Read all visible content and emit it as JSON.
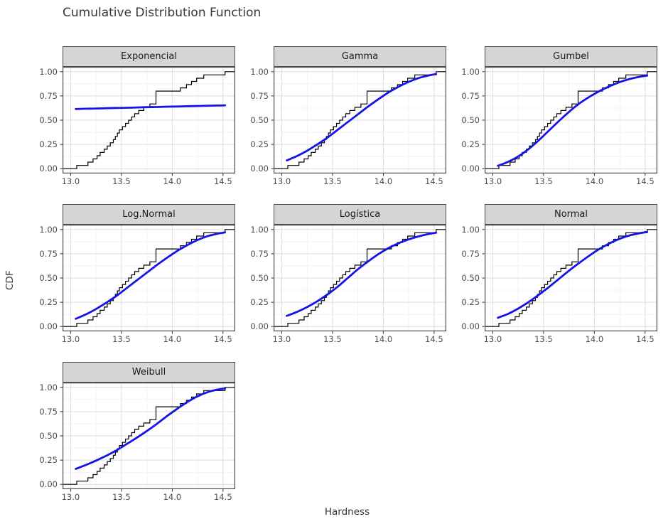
{
  "figure": {
    "title": "Cumulative Distribution Function",
    "x_axis_title": "Hardness",
    "y_axis_title": "CDF"
  },
  "style": {
    "curve_color": "#1414e8",
    "ecdf_color": "#000000",
    "strip_fill": "#d5d5d5",
    "strip_border": "#4d4d4d",
    "panel_border": "#4d4d4d",
    "panel_bg": "#ffffff",
    "grid_major": "#dcdcdc",
    "grid_minor": "#efefef",
    "tick_mark_color": "#333333",
    "tick_label_color": "#4d4d4d",
    "title_color": "#383838"
  },
  "chart_data": {
    "type": "line",
    "title": "Cumulative Distribution Function",
    "xlabel": "Hardness",
    "ylabel": "CDF",
    "legend": "none",
    "grid": "on",
    "facet_labels": [
      "Exponencial",
      "Gamma",
      "Gumbel",
      "Log.Normal",
      "Logística",
      "Normal",
      "Weibull"
    ],
    "xlim": [
      12.92,
      14.62
    ],
    "ylim": [
      -0.05,
      1.05
    ],
    "x_ticks": {
      "values": [
        13.0,
        13.5,
        14.0,
        14.5
      ],
      "labels": [
        "13.0",
        "13.5",
        "14.0",
        "14.5"
      ],
      "minor": [
        13.25,
        13.75,
        14.25
      ]
    },
    "y_ticks": {
      "values": [
        0.0,
        0.25,
        0.5,
        0.75,
        1.0
      ],
      "labels": [
        "0.00",
        "0.25",
        "0.50",
        "0.75",
        "1.00"
      ],
      "minor": [
        0.125,
        0.375,
        0.625,
        0.875
      ]
    },
    "ecdf": {
      "name": "empirical-step-function",
      "x": [
        13.06,
        13.17,
        13.22,
        13.26,
        13.29,
        13.33,
        13.36,
        13.39,
        13.42,
        13.44,
        13.46,
        13.48,
        13.51,
        13.54,
        13.57,
        13.6,
        13.63,
        13.67,
        13.72,
        13.78,
        13.84,
        14.08,
        14.14,
        14.19,
        14.24,
        14.31,
        14.52
      ],
      "cum": [
        0.033,
        0.067,
        0.1,
        0.133,
        0.167,
        0.2,
        0.233,
        0.267,
        0.3,
        0.333,
        0.367,
        0.4,
        0.433,
        0.467,
        0.5,
        0.533,
        0.567,
        0.6,
        0.633,
        0.667,
        0.8,
        0.833,
        0.867,
        0.9,
        0.933,
        0.967,
        1.0
      ]
    },
    "curve_x": [
      13.05,
      13.15,
      13.25,
      13.35,
      13.45,
      13.55,
      13.65,
      13.75,
      13.85,
      13.95,
      14.05,
      14.15,
      14.25,
      14.35,
      14.45,
      14.52
    ],
    "panels": [
      {
        "label": "Exponencial",
        "curve_y": [
          0.615,
          0.618,
          0.62,
          0.623,
          0.626,
          0.628,
          0.631,
          0.634,
          0.636,
          0.639,
          0.641,
          0.644,
          0.646,
          0.649,
          0.651,
          0.653
        ]
      },
      {
        "label": "Gamma",
        "curve_y": [
          0.085,
          0.13,
          0.185,
          0.25,
          0.32,
          0.4,
          0.48,
          0.56,
          0.64,
          0.715,
          0.785,
          0.845,
          0.895,
          0.935,
          0.962,
          0.975
        ]
      },
      {
        "label": "Gumbel",
        "curve_y": [
          0.03,
          0.07,
          0.125,
          0.2,
          0.29,
          0.39,
          0.49,
          0.585,
          0.67,
          0.74,
          0.8,
          0.85,
          0.893,
          0.925,
          0.948,
          0.96
        ]
      },
      {
        "label": "Log.Normal",
        "curve_y": [
          0.08,
          0.125,
          0.18,
          0.245,
          0.315,
          0.395,
          0.475,
          0.555,
          0.635,
          0.71,
          0.78,
          0.84,
          0.892,
          0.932,
          0.958,
          0.97
        ]
      },
      {
        "label": "Logística",
        "curve_y": [
          0.11,
          0.15,
          0.2,
          0.26,
          0.33,
          0.41,
          0.5,
          0.59,
          0.67,
          0.745,
          0.808,
          0.858,
          0.898,
          0.93,
          0.955,
          0.967
        ]
      },
      {
        "label": "Normal",
        "curve_y": [
          0.09,
          0.13,
          0.185,
          0.25,
          0.325,
          0.405,
          0.49,
          0.575,
          0.655,
          0.73,
          0.8,
          0.858,
          0.905,
          0.94,
          0.963,
          0.975
        ]
      },
      {
        "label": "Weibull",
        "curve_y": [
          0.16,
          0.2,
          0.245,
          0.295,
          0.35,
          0.415,
          0.48,
          0.55,
          0.625,
          0.705,
          0.78,
          0.85,
          0.908,
          0.952,
          0.978,
          0.99
        ]
      }
    ]
  }
}
